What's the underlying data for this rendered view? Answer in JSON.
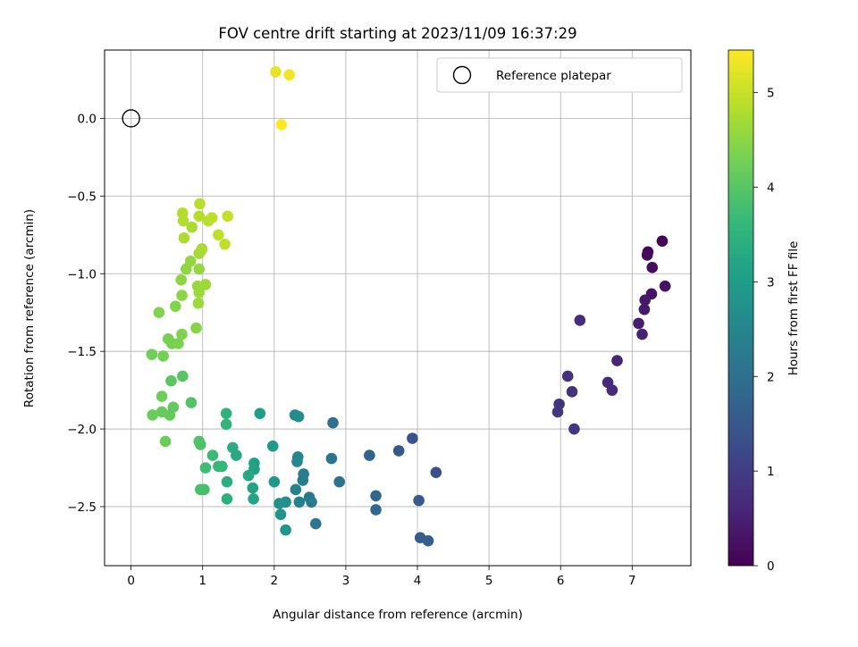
{
  "chart_data": {
    "type": "scatter",
    "title": "FOV centre drift starting at 2023/11/09 16:37:29",
    "xlabel": "Angular distance from reference (arcmin)",
    "ylabel": "Rotation from reference (arcmin)",
    "xlim": [
      -0.37,
      7.82
    ],
    "ylim": [
      -2.88,
      0.44
    ],
    "xticks": [
      0,
      1,
      2,
      3,
      4,
      5,
      6,
      7
    ],
    "yticks": [
      0.0,
      -0.5,
      -1.0,
      -1.5,
      -2.0,
      -2.5
    ],
    "xtick_labels": [
      "0",
      "1",
      "2",
      "3",
      "4",
      "5",
      "6",
      "7"
    ],
    "ytick_labels": [
      "0.0",
      "−0.5",
      "−1.0",
      "−1.5",
      "−2.0",
      "−2.5"
    ],
    "grid": true,
    "legend": {
      "position": "top-right",
      "entries": [
        {
          "label": "Reference platepar",
          "marker": "open-circle"
        }
      ]
    },
    "reference_point": {
      "x": 0.0,
      "y": 0.0
    },
    "colorbar": {
      "label": "Hours from first FF file",
      "min": 0,
      "max": 5.45,
      "ticks": [
        0,
        1,
        2,
        3,
        4,
        5
      ],
      "tick_labels": [
        "0",
        "1",
        "2",
        "3",
        "4",
        "5"
      ],
      "colormap": "viridis",
      "colors": [
        "#440154",
        "#482878",
        "#3e4989",
        "#31688e",
        "#26828e",
        "#1f9e89",
        "#35b779",
        "#6ece58",
        "#b5de2b",
        "#fde725"
      ]
    },
    "series": [
      {
        "values": [
          {
            "x": 7.42,
            "y": -0.79,
            "h": 0.05
          },
          {
            "x": 7.22,
            "y": -0.86,
            "h": 0.1
          },
          {
            "x": 7.21,
            "y": -0.88,
            "h": 0.15
          },
          {
            "x": 7.28,
            "y": -0.96,
            "h": 0.2
          },
          {
            "x": 7.46,
            "y": -1.08,
            "h": 0.25
          },
          {
            "x": 7.27,
            "y": -1.13,
            "h": 0.3
          },
          {
            "x": 7.18,
            "y": -1.17,
            "h": 0.35
          },
          {
            "x": 7.17,
            "y": -1.23,
            "h": 0.4
          },
          {
            "x": 7.09,
            "y": -1.32,
            "h": 0.45
          },
          {
            "x": 7.14,
            "y": -1.39,
            "h": 0.5
          },
          {
            "x": 6.79,
            "y": -1.56,
            "h": 0.55
          },
          {
            "x": 6.66,
            "y": -1.7,
            "h": 0.6
          },
          {
            "x": 6.72,
            "y": -1.75,
            "h": 0.65
          },
          {
            "x": 6.27,
            "y": -1.3,
            "h": 0.7
          },
          {
            "x": 6.1,
            "y": -1.66,
            "h": 0.75
          },
          {
            "x": 6.16,
            "y": -1.76,
            "h": 0.8
          },
          {
            "x": 5.98,
            "y": -1.84,
            "h": 0.85
          },
          {
            "x": 5.96,
            "y": -1.89,
            "h": 0.88
          },
          {
            "x": 6.19,
            "y": -2.0,
            "h": 0.92
          },
          {
            "x": 4.26,
            "y": -2.28,
            "h": 1.35
          },
          {
            "x": 3.93,
            "y": -2.06,
            "h": 1.45
          },
          {
            "x": 3.74,
            "y": -2.14,
            "h": 1.5
          },
          {
            "x": 4.02,
            "y": -2.46,
            "h": 1.55
          },
          {
            "x": 4.04,
            "y": -2.7,
            "h": 1.6
          },
          {
            "x": 4.15,
            "y": -2.72,
            "h": 1.65
          },
          {
            "x": 3.33,
            "y": -2.17,
            "h": 1.75
          },
          {
            "x": 3.42,
            "y": -2.43,
            "h": 1.8
          },
          {
            "x": 3.42,
            "y": -2.52,
            "h": 1.85
          },
          {
            "x": 2.82,
            "y": -1.96,
            "h": 2.0
          },
          {
            "x": 2.8,
            "y": -2.19,
            "h": 2.05
          },
          {
            "x": 2.91,
            "y": -2.34,
            "h": 2.1
          },
          {
            "x": 2.58,
            "y": -2.61,
            "h": 2.15
          },
          {
            "x": 2.49,
            "y": -2.44,
            "h": 2.2
          },
          {
            "x": 2.52,
            "y": -2.47,
            "h": 2.25
          },
          {
            "x": 2.41,
            "y": -2.29,
            "h": 2.3
          },
          {
            "x": 2.4,
            "y": -2.33,
            "h": 2.35
          },
          {
            "x": 2.35,
            "y": -2.47,
            "h": 2.4
          },
          {
            "x": 2.3,
            "y": -2.39,
            "h": 2.45
          },
          {
            "x": 2.33,
            "y": -2.18,
            "h": 2.5
          },
          {
            "x": 2.32,
            "y": -2.21,
            "h": 2.55
          },
          {
            "x": 2.29,
            "y": -1.91,
            "h": 2.6
          },
          {
            "x": 2.34,
            "y": -1.92,
            "h": 2.65
          },
          {
            "x": 2.16,
            "y": -2.47,
            "h": 2.7
          },
          {
            "x": 2.07,
            "y": -2.48,
            "h": 2.75
          },
          {
            "x": 2.09,
            "y": -2.55,
            "h": 2.8
          },
          {
            "x": 2.16,
            "y": -2.65,
            "h": 2.85
          },
          {
            "x": 2.0,
            "y": -2.34,
            "h": 2.9
          },
          {
            "x": 1.98,
            "y": -2.11,
            "h": 2.95
          },
          {
            "x": 1.8,
            "y": -1.9,
            "h": 3.0
          },
          {
            "x": 1.72,
            "y": -2.22,
            "h": 3.05
          },
          {
            "x": 1.72,
            "y": -2.26,
            "h": 3.1
          },
          {
            "x": 1.7,
            "y": -2.38,
            "h": 3.15
          },
          {
            "x": 1.71,
            "y": -2.45,
            "h": 3.2
          },
          {
            "x": 1.64,
            "y": -2.3,
            "h": 3.25
          },
          {
            "x": 1.47,
            "y": -2.17,
            "h": 3.3
          },
          {
            "x": 1.42,
            "y": -2.12,
            "h": 3.35
          },
          {
            "x": 1.34,
            "y": -2.34,
            "h": 3.4
          },
          {
            "x": 1.34,
            "y": -2.45,
            "h": 3.45
          },
          {
            "x": 1.33,
            "y": -1.9,
            "h": 3.5
          },
          {
            "x": 1.33,
            "y": -1.97,
            "h": 3.55
          },
          {
            "x": 1.27,
            "y": -2.24,
            "h": 3.6
          },
          {
            "x": 1.22,
            "y": -2.24,
            "h": 3.65
          },
          {
            "x": 1.14,
            "y": -2.17,
            "h": 3.7
          },
          {
            "x": 1.04,
            "y": -2.25,
            "h": 3.75
          },
          {
            "x": 1.02,
            "y": -2.39,
            "h": 3.8
          },
          {
            "x": 0.97,
            "y": -2.39,
            "h": 3.85
          },
          {
            "x": 0.97,
            "y": -2.1,
            "h": 3.9
          },
          {
            "x": 0.95,
            "y": -2.08,
            "h": 3.92
          },
          {
            "x": 0.84,
            "y": -1.83,
            "h": 3.95
          },
          {
            "x": 0.72,
            "y": -1.66,
            "h": 4.0
          },
          {
            "x": 0.56,
            "y": -1.69,
            "h": 4.05
          },
          {
            "x": 0.59,
            "y": -1.86,
            "h": 4.1
          },
          {
            "x": 0.54,
            "y": -1.91,
            "h": 4.12
          },
          {
            "x": 0.43,
            "y": -1.89,
            "h": 4.15
          },
          {
            "x": 0.3,
            "y": -1.91,
            "h": 4.18
          },
          {
            "x": 0.48,
            "y": -2.08,
            "h": 4.2
          },
          {
            "x": 0.43,
            "y": -1.79,
            "h": 4.22
          },
          {
            "x": 0.29,
            "y": -1.52,
            "h": 4.25
          },
          {
            "x": 0.45,
            "y": -1.53,
            "h": 4.28
          },
          {
            "x": 0.52,
            "y": -1.42,
            "h": 4.3
          },
          {
            "x": 0.57,
            "y": -1.45,
            "h": 4.32
          },
          {
            "x": 0.66,
            "y": -1.45,
            "h": 4.35
          },
          {
            "x": 0.71,
            "y": -1.39,
            "h": 4.38
          },
          {
            "x": 0.39,
            "y": -1.25,
            "h": 4.4
          },
          {
            "x": 0.62,
            "y": -1.21,
            "h": 4.42
          },
          {
            "x": 0.91,
            "y": -1.35,
            "h": 4.45
          },
          {
            "x": 0.71,
            "y": -1.14,
            "h": 4.48
          },
          {
            "x": 0.7,
            "y": -1.04,
            "h": 4.5
          },
          {
            "x": 0.77,
            "y": -0.97,
            "h": 4.52
          },
          {
            "x": 0.83,
            "y": -0.92,
            "h": 4.55
          },
          {
            "x": 0.95,
            "y": -0.97,
            "h": 4.58
          },
          {
            "x": 0.93,
            "y": -1.08,
            "h": 4.6
          },
          {
            "x": 0.95,
            "y": -1.12,
            "h": 4.62
          },
          {
            "x": 0.94,
            "y": -1.19,
            "h": 4.64
          },
          {
            "x": 1.04,
            "y": -1.07,
            "h": 4.66
          },
          {
            "x": 0.95,
            "y": -0.87,
            "h": 4.7
          },
          {
            "x": 0.98,
            "y": -0.85,
            "h": 4.72
          },
          {
            "x": 0.99,
            "y": -0.84,
            "h": 4.74
          },
          {
            "x": 0.85,
            "y": -0.7,
            "h": 4.76
          },
          {
            "x": 0.74,
            "y": -0.77,
            "h": 4.78
          },
          {
            "x": 0.73,
            "y": -0.66,
            "h": 4.8
          },
          {
            "x": 0.72,
            "y": -0.61,
            "h": 4.82
          },
          {
            "x": 0.95,
            "y": -0.63,
            "h": 4.84
          },
          {
            "x": 0.96,
            "y": -0.55,
            "h": 4.86
          },
          {
            "x": 1.08,
            "y": -0.66,
            "h": 4.88
          },
          {
            "x": 1.13,
            "y": -0.64,
            "h": 4.9
          },
          {
            "x": 1.22,
            "y": -0.75,
            "h": 4.92
          },
          {
            "x": 1.31,
            "y": -0.81,
            "h": 4.94
          },
          {
            "x": 1.35,
            "y": -0.63,
            "h": 4.96
          },
          {
            "x": 2.02,
            "y": 0.3,
            "h": 5.25
          },
          {
            "x": 2.21,
            "y": 0.28,
            "h": 5.35
          },
          {
            "x": 2.1,
            "y": -0.04,
            "h": 5.45
          }
        ]
      }
    ]
  }
}
